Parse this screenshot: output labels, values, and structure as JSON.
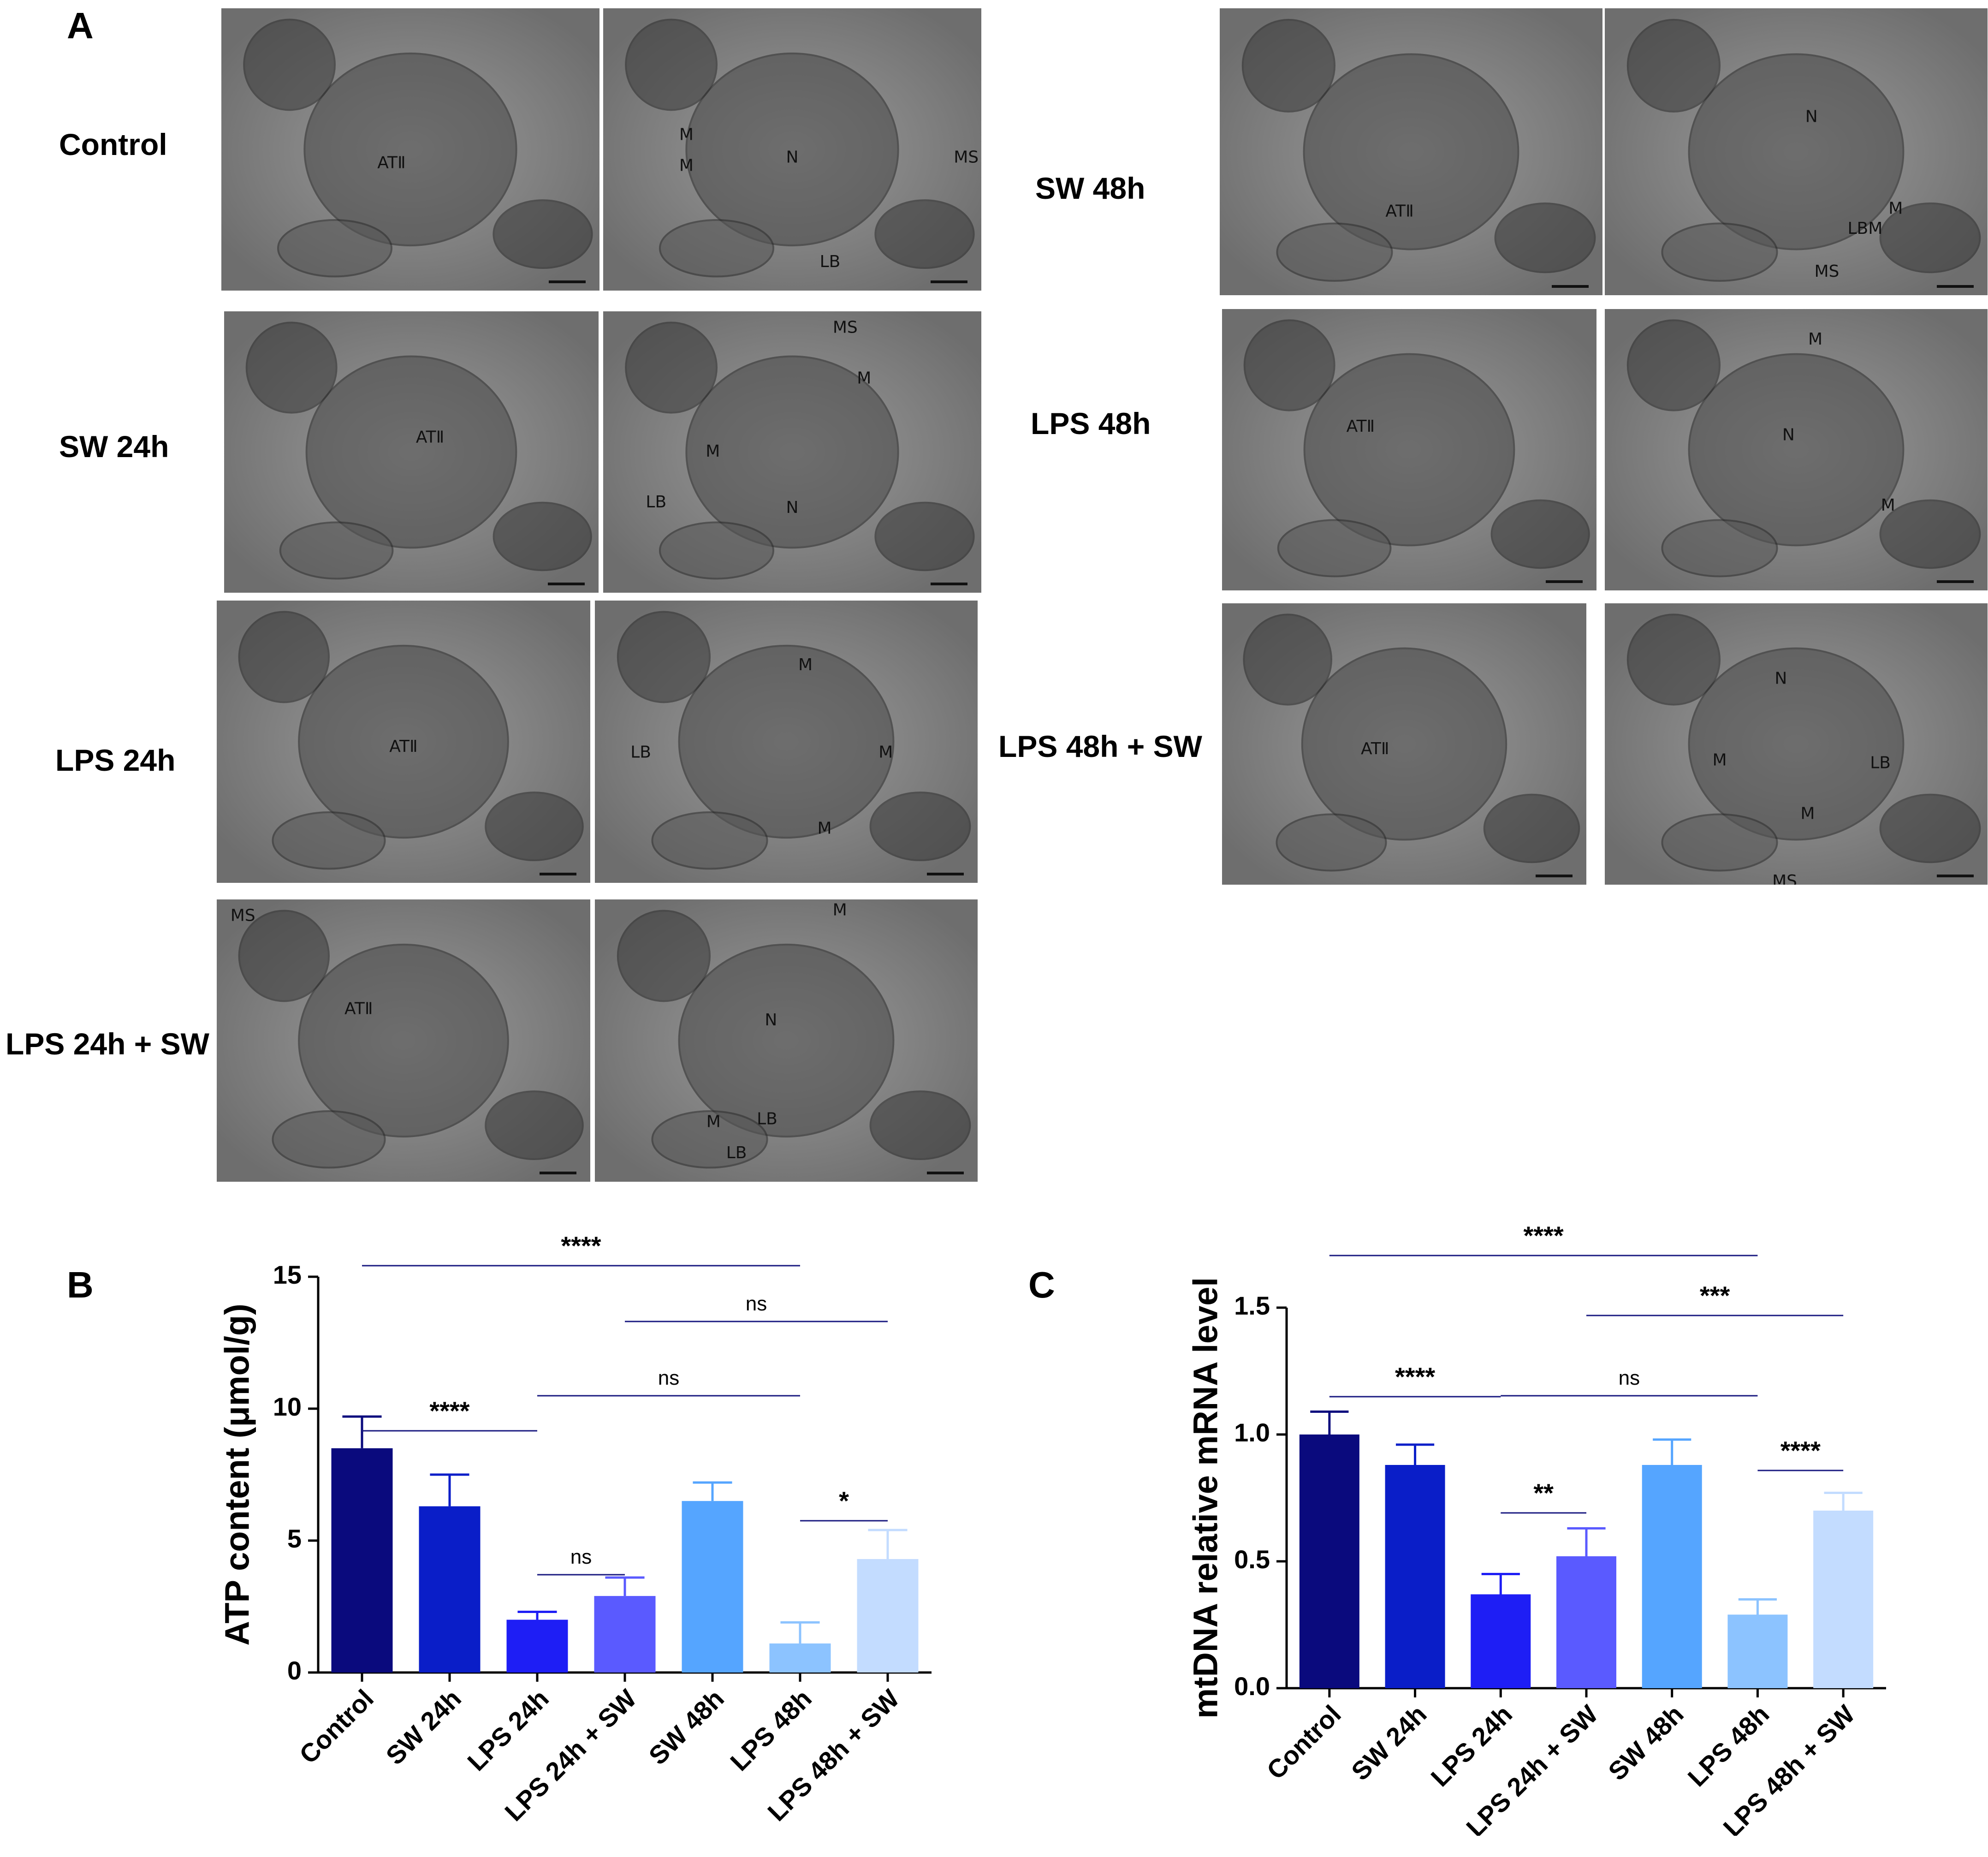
{
  "panels": {
    "a": "A",
    "b": "B",
    "c": "C"
  },
  "em_panel": {
    "row_labels": [
      "Control",
      "SW 24h",
      "LPS 24h",
      "LPS 24h + SW",
      "SW 48h",
      "LPS 48h",
      "LPS 48h + SW"
    ],
    "annotations": [
      [
        "ATⅡ"
      ],
      [
        "M",
        "M",
        "N",
        "MS",
        "LB"
      ],
      [
        "ATⅡ"
      ],
      [
        "MS",
        "M",
        "M",
        "LB",
        "N"
      ],
      [
        "ATⅡ"
      ],
      [
        "M",
        "LB",
        "M",
        "M"
      ],
      [
        "MS",
        "ATⅡ"
      ],
      [
        "M",
        "N",
        "M",
        "LB",
        "LB"
      ],
      [
        "ATⅡ"
      ],
      [
        "N",
        "M",
        "LBM",
        "MS"
      ],
      [
        "ATⅡ"
      ],
      [
        "M",
        "N",
        "M"
      ],
      [
        "ATⅡ"
      ],
      [
        "N",
        "M",
        "LB",
        "M",
        "MS"
      ]
    ]
  },
  "colors": [
    "#0a0a7d",
    "#0a1ec8",
    "#1e1ef5",
    "#5a5aff",
    "#55a5ff",
    "#8cc3ff",
    "#c3dcff"
  ],
  "chart_data": [
    {
      "type": "bar",
      "panel": "B",
      "categories": [
        "Control",
        "SW 24h",
        "LPS 24h",
        "LPS 24h + SW",
        "SW 48h",
        "LPS 48h",
        "LPS 48h + SW"
      ],
      "values": [
        8.5,
        6.3,
        2.0,
        2.9,
        6.5,
        1.1,
        4.3
      ],
      "errors": [
        1.2,
        1.2,
        0.3,
        0.7,
        0.7,
        0.8,
        1.1
      ],
      "ylabel": "ATP content (μmol/g)",
      "ylim": [
        0,
        15
      ],
      "yticks": [
        0,
        5,
        10,
        15
      ],
      "ytick_labels": [
        "0",
        "5",
        "10",
        "15"
      ],
      "comparisons": [
        {
          "from": 0,
          "to": 5,
          "label": "****"
        },
        {
          "from": 3,
          "to": 6,
          "label": "ns"
        },
        {
          "from": 2,
          "to": 5,
          "label": "ns"
        },
        {
          "from": 0,
          "to": 2,
          "label": "****"
        },
        {
          "from": 2,
          "to": 3,
          "label": "ns"
        },
        {
          "from": 5,
          "to": 6,
          "label": "*"
        }
      ]
    },
    {
      "type": "bar",
      "panel": "C",
      "categories": [
        "Control",
        "SW 24h",
        "LPS 24h",
        "LPS 24h + SW",
        "SW 48h",
        "LPS 48h",
        "LPS 48h + SW"
      ],
      "values": [
        1.0,
        0.88,
        0.37,
        0.52,
        0.88,
        0.29,
        0.7
      ],
      "errors": [
        0.09,
        0.08,
        0.08,
        0.11,
        0.1,
        0.06,
        0.07
      ],
      "ylabel": "mtDNA relative mRNA level",
      "ylim": [
        0,
        1.5
      ],
      "yticks": [
        0,
        0.5,
        1.0,
        1.5
      ],
      "ytick_labels": [
        "0.0",
        "0.5",
        "1.0",
        "1.5"
      ],
      "comparisons": [
        {
          "from": 0,
          "to": 5,
          "label": "****"
        },
        {
          "from": 3,
          "to": 6,
          "label": "***"
        },
        {
          "from": 2,
          "to": 5,
          "label": "ns"
        },
        {
          "from": 0,
          "to": 2,
          "label": "****"
        },
        {
          "from": 2,
          "to": 3,
          "label": "**"
        },
        {
          "from": 5,
          "to": 6,
          "label": "****"
        }
      ]
    }
  ]
}
